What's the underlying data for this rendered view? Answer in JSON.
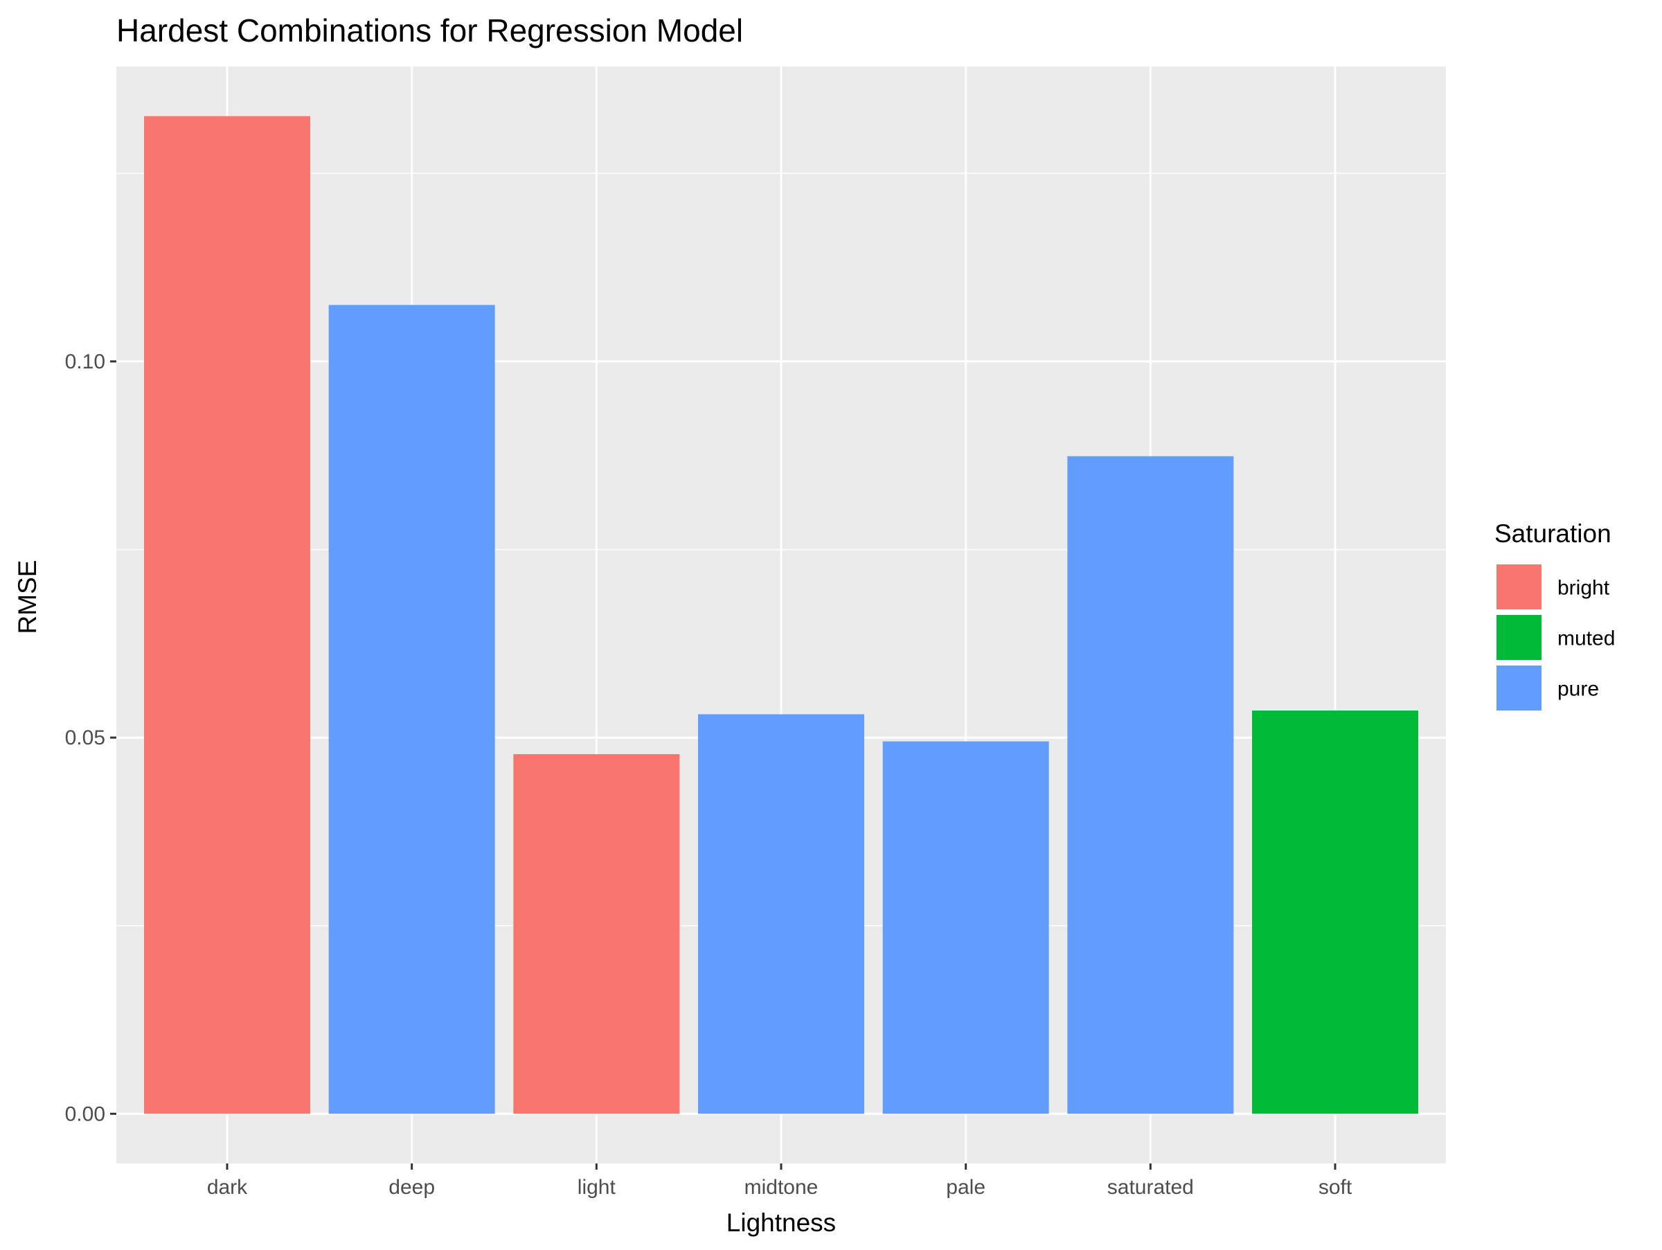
{
  "chart_data": {
    "type": "bar",
    "title": "Hardest Combinations for Regression Model",
    "xlabel": "Lightness",
    "ylabel": "RMSE",
    "categories": [
      "dark",
      "deep",
      "light",
      "midtone",
      "pale",
      "saturated",
      "soft"
    ],
    "values": [
      0.1326,
      0.1075,
      0.0478,
      0.0531,
      0.0495,
      0.0874,
      0.0536
    ],
    "group": [
      "bright",
      "pure",
      "bright",
      "pure",
      "pure",
      "pure",
      "muted"
    ],
    "ylim": [
      -0.0066,
      0.1392
    ],
    "yticks": [
      0.0,
      0.05,
      0.1
    ],
    "ytick_labels": [
      "0.00",
      "0.05",
      "0.10"
    ],
    "grid": true,
    "panel_background": "#EBEBEB",
    "gridline_color": "#FFFFFF",
    "legend": {
      "title": "Saturation",
      "position": "right",
      "entries": [
        {
          "label": "bright",
          "color": "#F8766D"
        },
        {
          "label": "muted",
          "color": "#00BA38"
        },
        {
          "label": "pure",
          "color": "#619CFF"
        }
      ]
    }
  }
}
